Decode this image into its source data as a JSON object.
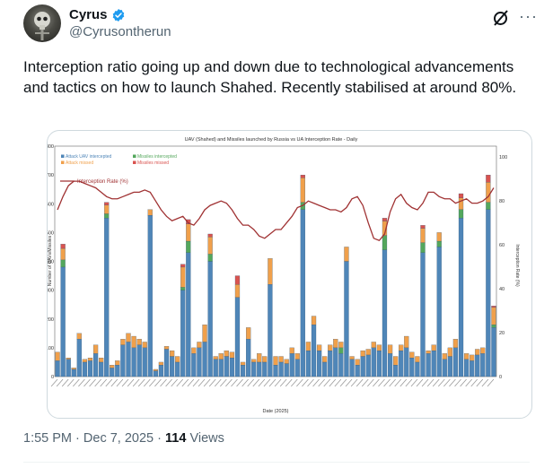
{
  "author": {
    "name": "Cyrus",
    "handle": "@Cyrusontherun"
  },
  "tweet": {
    "text": "Interception ratio going up and down due to technological advancements and tactics on how to launch Shahed. Recently stabilised at around 80%."
  },
  "meta": {
    "time": "1:55 PM",
    "sep1": "·",
    "date": "Dec 7, 2025",
    "sep2": "·",
    "views_count": "114",
    "views_label": "Views"
  },
  "icons": {
    "verified": "verified-badge-icon",
    "grok": "grok-icon",
    "more": "more-icon"
  },
  "colors": {
    "uav_intercepted": "#4f86b8",
    "uav_missed": "#f0a04b",
    "missiles_intercepted": "#54a75c",
    "missiles_missed": "#d9534f",
    "rate_line": "#a03233",
    "verified": "#1d9bf0"
  },
  "chart_data": {
    "type": "bar",
    "title": "UAV (Shahed) and Missiles launched by Russia vs UA Interception Rate - Daily",
    "xlabel": "Date (2025)",
    "ylabel": "Number of UAVs/Missiles",
    "y2label": "Interception Rate (%)",
    "ylim": [
      0,
      800
    ],
    "y2lim": [
      0,
      105
    ],
    "yticks": [
      "0",
      "100",
      "200",
      "300",
      "400",
      "500",
      "600",
      "700",
      "800"
    ],
    "y2ticks": [
      "0",
      "20",
      "40",
      "60",
      "80",
      "100"
    ],
    "stacked": true,
    "legend": [
      "Attack UAV intercepted",
      "Missiles intercepted",
      "Attack missed",
      "Missiles missed"
    ],
    "line_legend": "Interception Rate (%)",
    "legend_position": "top-left",
    "grid": false,
    "series": [
      {
        "name": "Attack UAV intercepted",
        "values": [
          55,
          380,
          60,
          25,
          130,
          50,
          55,
          80,
          50,
          550,
          30,
          40,
          110,
          120,
          100,
          110,
          100,
          560,
          20,
          40,
          95,
          70,
          50,
          300,
          430,
          80,
          100,
          120,
          400,
          60,
          60,
          70,
          65,
          275,
          40,
          130,
          50,
          50,
          50,
          320,
          40,
          50,
          45,
          80,
          60,
          580,
          90,
          180,
          90,
          50,
          90,
          100,
          80,
          400,
          60,
          40,
          70,
          75,
          100,
          90,
          440,
          80,
          40,
          90,
          100,
          65,
          50,
          430,
          80,
          90,
          450,
          60,
          70,
          100,
          550,
          60,
          55,
          75,
          80,
          580,
          170
        ]
      },
      {
        "name": "Attack missed",
        "values": [
          30,
          40,
          5,
          5,
          20,
          10,
          10,
          30,
          15,
          30,
          10,
          15,
          20,
          30,
          40,
          20,
          20,
          20,
          5,
          10,
          10,
          20,
          20,
          70,
          60,
          20,
          20,
          60,
          60,
          10,
          20,
          20,
          20,
          45,
          10,
          40,
          10,
          30,
          20,
          90,
          30,
          20,
          15,
          20,
          20,
          85,
          30,
          30,
          20,
          20,
          20,
          30,
          20,
          50,
          10,
          20,
          20,
          20,
          20,
          20,
          50,
          30,
          30,
          20,
          40,
          20,
          20,
          50,
          10,
          20,
          30,
          20,
          30,
          30,
          40,
          20,
          20,
          20,
          20,
          70,
          60
        ]
      },
      {
        "name": "Missiles intercepted",
        "values": [
          0,
          25,
          0,
          0,
          0,
          0,
          0,
          0,
          0,
          15,
          0,
          0,
          0,
          0,
          0,
          0,
          0,
          0,
          0,
          0,
          0,
          0,
          0,
          10,
          40,
          0,
          0,
          0,
          25,
          0,
          0,
          0,
          0,
          0,
          0,
          0,
          0,
          0,
          0,
          0,
          0,
          0,
          0,
          0,
          0,
          25,
          0,
          0,
          0,
          0,
          0,
          0,
          20,
          0,
          0,
          0,
          0,
          0,
          0,
          0,
          50,
          0,
          0,
          0,
          0,
          0,
          0,
          35,
          0,
          0,
          20,
          0,
          0,
          0,
          30,
          0,
          0,
          0,
          0,
          25,
          10
        ]
      },
      {
        "name": "Missiles missed",
        "values": [
          0,
          15,
          0,
          0,
          0,
          0,
          0,
          0,
          0,
          10,
          0,
          0,
          0,
          0,
          0,
          0,
          0,
          0,
          0,
          0,
          0,
          0,
          0,
          10,
          15,
          0,
          0,
          0,
          10,
          0,
          0,
          0,
          0,
          30,
          0,
          0,
          0,
          0,
          0,
          0,
          0,
          0,
          0,
          0,
          0,
          10,
          0,
          0,
          0,
          0,
          0,
          0,
          0,
          0,
          0,
          0,
          0,
          0,
          0,
          0,
          10,
          0,
          0,
          0,
          0,
          0,
          0,
          10,
          0,
          0,
          0,
          0,
          0,
          0,
          15,
          0,
          0,
          0,
          0,
          25,
          5
        ]
      }
    ],
    "rate": [
      76,
      82,
      87,
      89,
      89,
      88,
      87,
      86,
      84,
      82,
      81,
      81,
      82,
      83,
      84,
      84,
      85,
      84,
      80,
      76,
      73,
      71,
      72,
      73,
      70,
      69,
      72,
      76,
      78,
      79,
      80,
      79,
      76,
      72,
      69,
      69,
      67,
      64,
      63,
      65,
      67,
      67,
      70,
      73,
      77,
      78,
      80,
      79,
      78,
      77,
      76,
      76,
      75,
      77,
      81,
      82,
      78,
      70,
      63,
      62,
      65,
      75,
      81,
      83,
      79,
      77,
      76,
      79,
      84,
      84,
      82,
      81,
      81,
      79,
      80,
      81,
      79,
      79,
      80,
      82,
      86
    ]
  }
}
